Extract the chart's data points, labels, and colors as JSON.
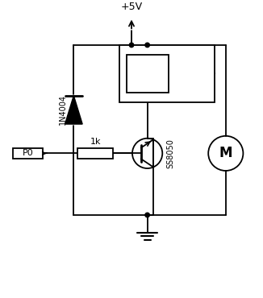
{
  "bg_color": "#ffffff",
  "line_color": "#000000",
  "figsize": [
    3.26,
    3.7
  ],
  "dpi": 100,
  "vcc_label": "+5V",
  "diode_label": "1N4004",
  "transistor_label": "SS8050",
  "resistor_label": "1k",
  "p0_label": "P0"
}
